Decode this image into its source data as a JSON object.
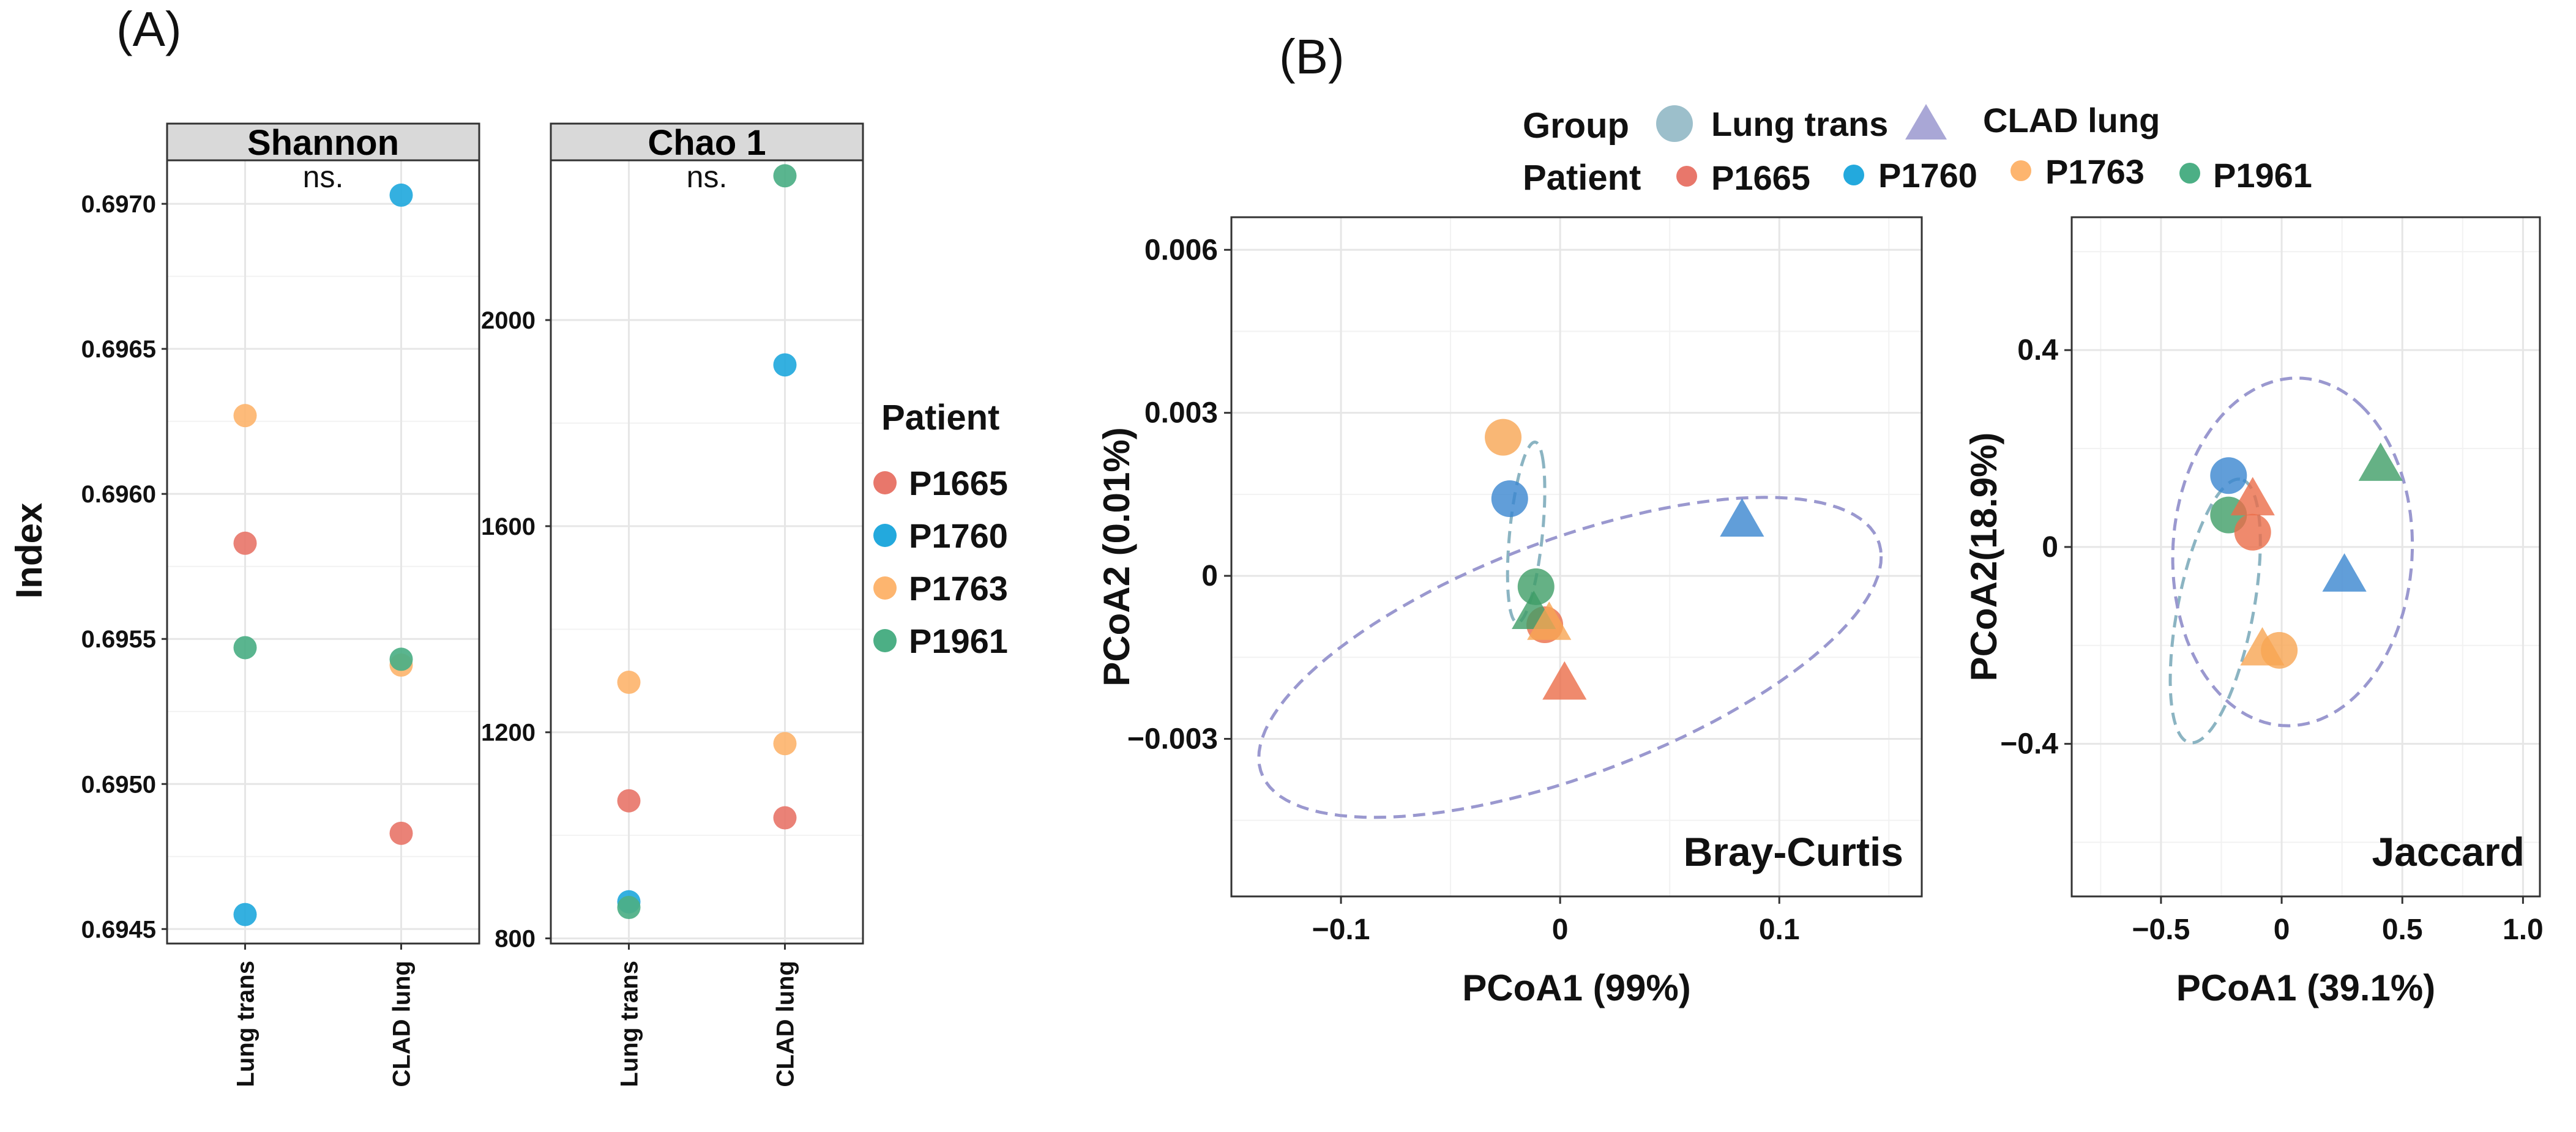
{
  "colors": {
    "P1665": "#E8776B",
    "P1760": "#23A9DD",
    "P1763": "#FDB56F",
    "P1961": "#4CAF85",
    "lung_trans": "#8BB4C2",
    "clad_lung": "#9A98CF",
    "pcoa_P1665": "#EB6D48",
    "pcoa_P1760": "#3A86CF",
    "pcoa_P1763": "#F8A552",
    "pcoa_P1961": "#3E9E66"
  },
  "panel_a": {
    "label": "(A)",
    "ylabel": "Index",
    "legend_title": "Patient",
    "legend_items": [
      {
        "key": "P1665",
        "label": "P1665"
      },
      {
        "key": "P1760",
        "label": "P1760"
      },
      {
        "key": "P1763",
        "label": "P1763"
      },
      {
        "key": "P1961",
        "label": "P1961"
      }
    ]
  },
  "panel_b": {
    "label": "(B)",
    "legend": {
      "group_title": "Group",
      "group_items": [
        {
          "key": "lung_trans",
          "label": "Lung trans",
          "shape": "circle"
        },
        {
          "key": "clad_lung",
          "label": "CLAD lung",
          "shape": "triangle"
        }
      ],
      "patient_title": "Patient",
      "patient_items": [
        {
          "key": "P1665",
          "label": "P1665"
        },
        {
          "key": "P1760",
          "label": "P1760"
        },
        {
          "key": "P1763",
          "label": "P1763"
        },
        {
          "key": "P1961",
          "label": "P1961"
        }
      ]
    }
  },
  "chart_data": [
    {
      "type": "scatter",
      "title": "Shannon",
      "annotation": "ns.",
      "ylabel": "Index",
      "categories": [
        "Lung trans",
        "CLAD lung"
      ],
      "ylim": [
        0.69445,
        0.69715
      ],
      "yticks": [
        0.6945,
        0.695,
        0.6955,
        0.696,
        0.6965,
        0.697
      ],
      "ytick_labels": [
        "0.6945",
        "0.6950",
        "0.6955",
        "0.6960",
        "0.6965",
        "0.6970"
      ],
      "series": [
        {
          "name": "P1665",
          "values": [
            0.69583,
            0.69483
          ]
        },
        {
          "name": "P1760",
          "values": [
            0.69455,
            0.69703
          ]
        },
        {
          "name": "P1763",
          "values": [
            0.69627,
            0.69541
          ]
        },
        {
          "name": "P1961",
          "values": [
            0.69547,
            0.69543
          ]
        }
      ]
    },
    {
      "type": "scatter",
      "title": "Chao 1",
      "annotation": "ns.",
      "ylabel": "Index",
      "categories": [
        "Lung trans",
        "CLAD lung"
      ],
      "ylim": [
        790,
        2310
      ],
      "yticks": [
        800,
        1200,
        1600,
        2000
      ],
      "ytick_labels": [
        "800",
        "1200",
        "1600",
        "2000"
      ],
      "series": [
        {
          "name": "P1665",
          "values": [
            1067,
            1034
          ]
        },
        {
          "name": "P1760",
          "values": [
            871,
            1913
          ]
        },
        {
          "name": "P1763",
          "values": [
            1297,
            1178
          ]
        },
        {
          "name": "P1961",
          "values": [
            860,
            2280
          ]
        }
      ]
    },
    {
      "type": "scatter",
      "title": "Bray-Curtis",
      "xlabel": "PCoA1 (99%)",
      "ylabel": "PCoA2 (0.01%)",
      "xlim": [
        -0.15,
        0.165
      ],
      "ylim": [
        -0.0059,
        0.0066
      ],
      "xticks": [
        -0.1,
        0,
        0.1
      ],
      "xtick_labels": [
        "−0.1",
        "0",
        "0.1"
      ],
      "yticks": [
        -0.003,
        0,
        0.003,
        0.006
      ],
      "ytick_labels": [
        "−0.003",
        "0",
        "0.003",
        "0.006"
      ],
      "points": [
        {
          "patient": "P1763",
          "group": "lung_trans",
          "x": -0.026,
          "y": 0.00255
        },
        {
          "patient": "P1760",
          "group": "lung_trans",
          "x": -0.023,
          "y": 0.00142
        },
        {
          "patient": "P1961",
          "group": "lung_trans",
          "x": -0.011,
          "y": -0.0002
        },
        {
          "patient": "P1665",
          "group": "lung_trans",
          "x": -0.007,
          "y": -0.0009
        },
        {
          "patient": "P1961",
          "group": "clad_lung",
          "x": -0.012,
          "y": -0.0007
        },
        {
          "patient": "P1763",
          "group": "clad_lung",
          "x": -0.005,
          "y": -0.0009
        },
        {
          "patient": "P1665",
          "group": "clad_lung",
          "x": 0.002,
          "y": -0.002
        },
        {
          "patient": "P1760",
          "group": "clad_lung",
          "x": 0.083,
          "y": 0.001
        }
      ],
      "ellipses": [
        {
          "group": "lung_trans",
          "cx": -0.0155,
          "cy": 0.0008,
          "rx": 0.0355,
          "ry": 0.0043,
          "angle_deg": -78
        },
        {
          "group": "clad_lung",
          "cx": 0.0045,
          "cy": -0.0015,
          "rx": 0.1493,
          "ry": 0.0024,
          "angle_deg": -18
        }
      ]
    },
    {
      "type": "scatter",
      "title": "Jaccard",
      "xlabel": "PCoA1 (39.1%)",
      "ylabel": "PCoA2(18.9%)",
      "xlim": [
        -0.87,
        1.07
      ],
      "ylim": [
        -0.71,
        0.67
      ],
      "xticks": [
        -0.5,
        0,
        0.5,
        1.0
      ],
      "xtick_labels": [
        "−0.5",
        "0",
        "0.5",
        "1.0"
      ],
      "yticks": [
        -0.4,
        0,
        0.4
      ],
      "ytick_labels": [
        "−0.4",
        "0",
        "0.4"
      ],
      "points": [
        {
          "patient": "P1760",
          "group": "lung_trans",
          "x": -0.22,
          "y": 0.145
        },
        {
          "patient": "P1961",
          "group": "lung_trans",
          "x": -0.22,
          "y": 0.065
        },
        {
          "patient": "P1665",
          "group": "lung_trans",
          "x": -0.12,
          "y": 0.03
        },
        {
          "patient": "P1763",
          "group": "lung_trans",
          "x": -0.01,
          "y": -0.21
        },
        {
          "patient": "P1665",
          "group": "clad_lung",
          "x": -0.12,
          "y": 0.095
        },
        {
          "patient": "P1961",
          "group": "clad_lung",
          "x": 0.41,
          "y": 0.165
        },
        {
          "patient": "P1760",
          "group": "clad_lung",
          "x": 0.26,
          "y": -0.06
        },
        {
          "patient": "P1763",
          "group": "clad_lung",
          "x": -0.08,
          "y": -0.21
        }
      ],
      "ellipses": [
        {
          "group": "lung_trans",
          "cx": -0.275,
          "cy": -0.13,
          "rx": 0.555,
          "ry": 0.15,
          "angle_deg": -78
        },
        {
          "group": "clad_lung",
          "cx": 0.045,
          "cy": -0.01,
          "rx": 0.67,
          "ry": 0.45,
          "angle_deg": -65
        }
      ]
    }
  ]
}
